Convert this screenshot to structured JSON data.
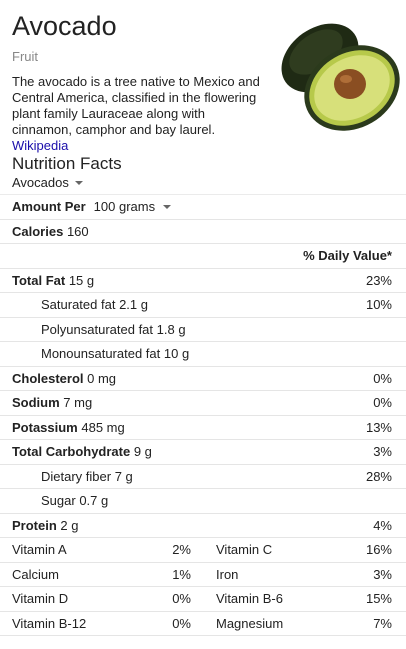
{
  "header": {
    "title": "Avocado",
    "subtitle": "Fruit",
    "description": "The avocado is a tree native to Mexico and Central America, classified in the flowering plant family Lauraceae along with cinnamon, camphor and bay laurel.",
    "source_link": "Wikipedia"
  },
  "nutrition": {
    "heading": "Nutrition Facts",
    "food_select": "Avocados",
    "amount_label": "Amount Per",
    "amount_value": "100 grams",
    "calories_label": "Calories",
    "calories_value": "160",
    "dv_header": "% Daily Value*",
    "rows": [
      {
        "label": "Total Fat",
        "amount": "15 g",
        "dv": "23%"
      },
      {
        "label": "Saturated fat",
        "amount": "2.1 g",
        "dv": "10%"
      },
      {
        "label": "Polyunsaturated fat",
        "amount": "1.8 g",
        "dv": ""
      },
      {
        "label": "Monounsaturated fat",
        "amount": "10 g",
        "dv": ""
      },
      {
        "label": "Cholesterol",
        "amount": "0 mg",
        "dv": "0%"
      },
      {
        "label": "Sodium",
        "amount": "7 mg",
        "dv": "0%"
      },
      {
        "label": "Potassium",
        "amount": "485 mg",
        "dv": "13%"
      },
      {
        "label": "Total Carbohydrate",
        "amount": "9 g",
        "dv": "3%"
      },
      {
        "label": "Dietary fiber",
        "amount": "7 g",
        "dv": "28%"
      },
      {
        "label": "Sugar",
        "amount": "0.7 g",
        "dv": ""
      },
      {
        "label": "Protein",
        "amount": "2 g",
        "dv": "4%"
      }
    ],
    "vitamins": [
      [
        {
          "name": "Vitamin A",
          "dv": "2%"
        },
        {
          "name": "Vitamin C",
          "dv": "16%"
        }
      ],
      [
        {
          "name": "Calcium",
          "dv": "1%"
        },
        {
          "name": "Iron",
          "dv": "3%"
        }
      ],
      [
        {
          "name": "Vitamin D",
          "dv": "0%"
        },
        {
          "name": "Vitamin B-6",
          "dv": "15%"
        }
      ],
      [
        {
          "name": "Vitamin B-12",
          "dv": "0%"
        },
        {
          "name": "Magnesium",
          "dv": "7%"
        }
      ]
    ]
  },
  "colors": {
    "link": "#1a0dab",
    "subtitle": "#878787",
    "divider": "#e5e5e5",
    "avocado_skin": "#2b3a1c",
    "avocado_flesh": "#d7e07a",
    "avocado_pit": "#8a4e22"
  },
  "icons": {
    "hero_image": "avocado-halves-image",
    "dropdown": "caret-down-icon"
  }
}
